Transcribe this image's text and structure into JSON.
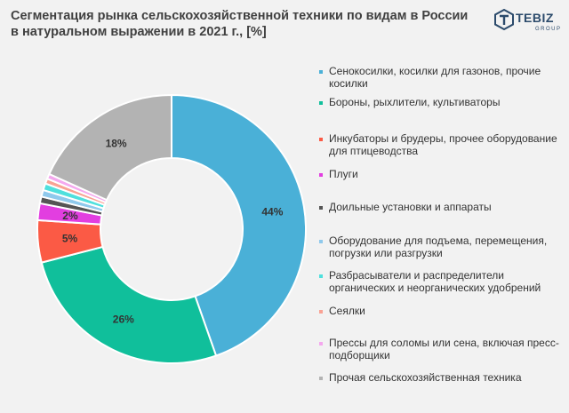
{
  "header": {
    "title": "Сегментация рынка сельскохозяйственной техники по видам в России в натуральном выражении в 2021 г., [%]"
  },
  "logo": {
    "word": "TEBIZ",
    "sub": "GROUP"
  },
  "chart_data": {
    "type": "pie",
    "variant": "donut",
    "title": "Сегментация рынка сельскохозяйственной техники по видам в России в натуральном выражении в 2021 г., [%]",
    "legend_position": "right",
    "slices": [
      {
        "name": "Сенокосилки, косилки для газонов, прочие косилки",
        "value": 44,
        "label": "44%",
        "color": "#4ab0d7"
      },
      {
        "name": "Бороны, рыхлители, культиваторы",
        "value": 26,
        "label": "26%",
        "color": "#10bf9b"
      },
      {
        "name": "Инкубаторы и брудеры, прочее оборудование для птицеводства",
        "value": 5,
        "label": "5%",
        "color": "#fb5a45"
      },
      {
        "name": "Плуги",
        "value": 2,
        "label": "2%",
        "color": "#e23ee0"
      },
      {
        "name": "Доильные установки и аппараты",
        "value": 0.8,
        "label": "",
        "color": "#555555"
      },
      {
        "name": "Оборудование для подъема, перемещения, погрузки или разгрузки",
        "value": 0.8,
        "label": "",
        "color": "#8fc9ec"
      },
      {
        "name": "Разбрасыватели и распределители органических и неорганических удобрений",
        "value": 0.8,
        "label": "",
        "color": "#4fe0dd"
      },
      {
        "name": "Сеялки",
        "value": 0.6,
        "label": "",
        "color": "#f9a294"
      },
      {
        "name": "Прессы для соломы или сена, включая пресс-подборщики",
        "value": 0.6,
        "label": "",
        "color": "#f4a8ee"
      },
      {
        "name": "Прочая сельскохозяйственная техника",
        "value": 18,
        "label": "18%",
        "color": "#b3b3b3"
      }
    ]
  }
}
